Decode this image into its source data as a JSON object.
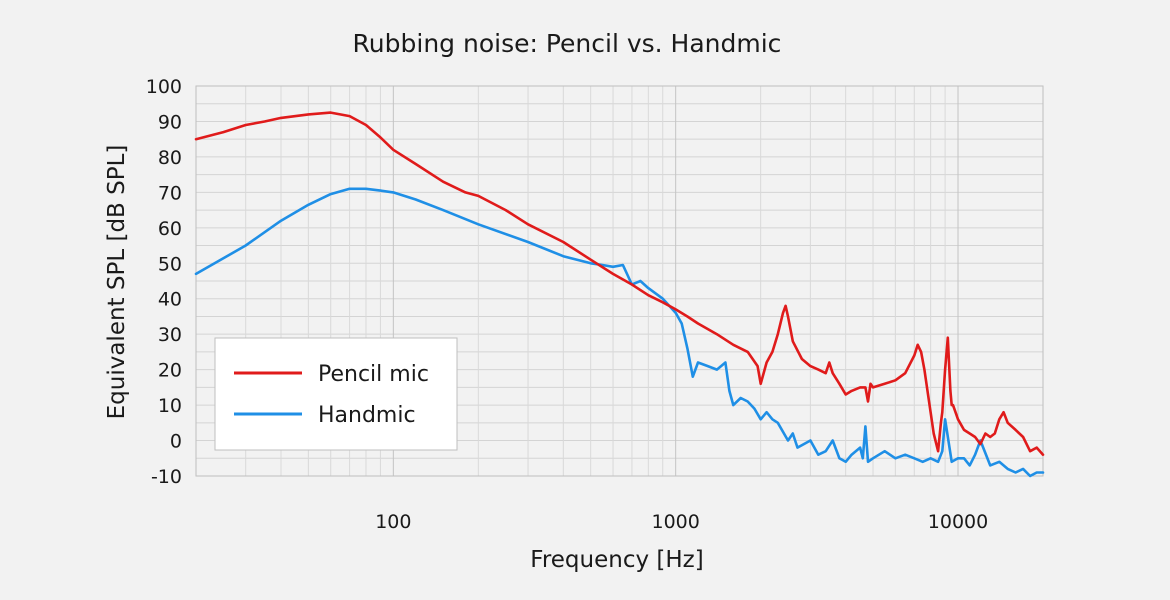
{
  "chart_data": {
    "type": "line",
    "title": "Rubbing noise: Pencil vs. Handmic",
    "xlabel": "Frequency [Hz]",
    "ylabel": "Equivalent SPL [dB SPL]",
    "x_scale": "log",
    "xlim": [
      20,
      20000
    ],
    "ylim": [
      -10,
      100
    ],
    "x_ticks": [
      100,
      1000,
      10000
    ],
    "x_tick_labels": [
      "100",
      "1000",
      "10000"
    ],
    "y_ticks": [
      -10,
      0,
      10,
      20,
      30,
      40,
      50,
      60,
      70,
      80,
      90,
      100
    ],
    "y_tick_labels": [
      "-10",
      "0",
      "10",
      "20",
      "30",
      "40",
      "50",
      "60",
      "70",
      "80",
      "90",
      "100"
    ],
    "grid": true,
    "legend_position": "bottom-left",
    "series": [
      {
        "name": "Pencil mic",
        "color": "#e01b1b",
        "x": [
          20,
          25,
          30,
          35,
          40,
          50,
          60,
          70,
          80,
          90,
          100,
          120,
          150,
          180,
          200,
          250,
          300,
          400,
          500,
          600,
          700,
          800,
          900,
          1000,
          1100,
          1200,
          1400,
          1600,
          1800,
          1950,
          2000,
          2100,
          2200,
          2300,
          2400,
          2450,
          2500,
          2600,
          2800,
          3000,
          3200,
          3400,
          3500,
          3600,
          3800,
          4000,
          4200,
          4500,
          4700,
          4800,
          4900,
          5000,
          5500,
          6000,
          6500,
          7000,
          7200,
          7400,
          7600,
          7800,
          8000,
          8200,
          8500,
          8700,
          8800,
          9000,
          9200,
          9400,
          9500,
          9600,
          9800,
          10000,
          10500,
          11000,
          11500,
          12000,
          12500,
          13000,
          13500,
          14000,
          14500,
          15000,
          16000,
          17000,
          18000,
          19000,
          20000
        ],
        "values": [
          85,
          87,
          89,
          90,
          91,
          92,
          92.5,
          91.5,
          89,
          85.5,
          82,
          78,
          73,
          70,
          69,
          65,
          61,
          56,
          51,
          47,
          44,
          41,
          39,
          37,
          35,
          33,
          30,
          27,
          25,
          21,
          16,
          22,
          25,
          30,
          36,
          38,
          35,
          28,
          23,
          21,
          20,
          19,
          22,
          19,
          16,
          13,
          14,
          15,
          15,
          11,
          16,
          15,
          16,
          17,
          19,
          24,
          27,
          25,
          20,
          14,
          8,
          2,
          -3,
          5,
          8,
          20,
          29,
          14,
          10,
          10,
          8,
          6,
          3,
          2,
          1,
          -1,
          2,
          1,
          2,
          6,
          8,
          5,
          3,
          1,
          -3,
          -2,
          -4
        ]
      },
      {
        "name": "Handmic",
        "color": "#1f8fe6",
        "x": [
          20,
          30,
          40,
          50,
          60,
          70,
          80,
          90,
          100,
          120,
          150,
          200,
          300,
          400,
          500,
          550,
          600,
          650,
          700,
          750,
          800,
          900,
          1000,
          1050,
          1100,
          1150,
          1200,
          1300,
          1400,
          1500,
          1550,
          1600,
          1700,
          1800,
          1900,
          2000,
          2100,
          2200,
          2300,
          2500,
          2600,
          2700,
          3000,
          3200,
          3400,
          3600,
          3800,
          4000,
          4200,
          4500,
          4600,
          4700,
          4800,
          5000,
          5500,
          6000,
          6500,
          7000,
          7500,
          8000,
          8500,
          8800,
          9000,
          9500,
          10000,
          10500,
          11000,
          11500,
          12000,
          13000,
          14000,
          15000,
          16000,
          17000,
          18000,
          19000,
          20000
        ],
        "values": [
          47,
          55,
          62,
          66.5,
          69.5,
          71,
          71,
          70.5,
          70,
          68,
          65,
          61,
          56,
          52,
          50,
          49.5,
          49,
          49.5,
          44,
          45,
          43,
          40,
          36,
          33,
          26,
          18,
          22,
          21,
          20,
          22,
          14,
          10,
          12,
          11,
          9,
          6,
          8,
          6,
          5,
          0,
          2,
          -2,
          0,
          -4,
          -3,
          0,
          -5,
          -6,
          -4,
          -2,
          -5,
          4,
          -6,
          -5,
          -3,
          -5,
          -4,
          -5,
          -6,
          -5,
          -6,
          -3,
          6,
          -6,
          -5,
          -5,
          -7,
          -4,
          0,
          -7,
          -6,
          -8,
          -9,
          -8,
          -10,
          -9,
          -9
        ]
      }
    ]
  }
}
